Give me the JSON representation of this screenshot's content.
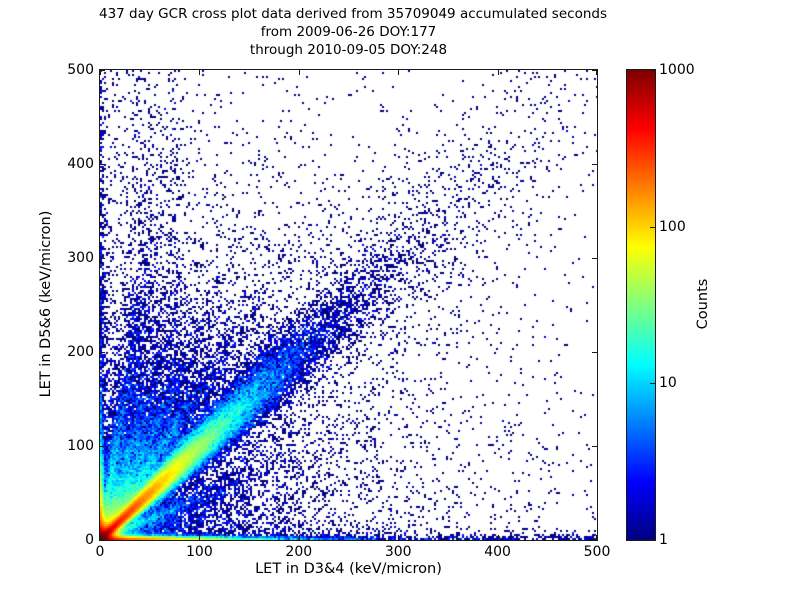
{
  "colors": {
    "foreground": "#000000",
    "background": "#ffffff"
  },
  "chart_data": {
    "type": "heatmap",
    "title_lines": [
      "437 day GCR cross plot data derived from 35709049 accumulated seconds",
      "from 2009-06-26 DOY:177",
      "through 2010-09-05 DOY:248"
    ],
    "xlabel": "LET in D3&4 (keV/micron)",
    "ylabel": "LET in D5&6 (keV/micron)",
    "xlim": [
      0,
      500
    ],
    "ylim": [
      0,
      500
    ],
    "xticks": [
      0,
      100,
      200,
      300,
      400,
      500
    ],
    "yticks": [
      0,
      100,
      200,
      300,
      400,
      500
    ],
    "grid": false,
    "bin_size_px": 2,
    "seed": 177248,
    "colorbar": {
      "label": "Counts",
      "scale": "log",
      "min": 1,
      "max": 1000,
      "ticks": [
        1,
        10,
        100,
        1000
      ],
      "colormap": "jet",
      "colormap_stops": [
        "#000080",
        "#0000ff",
        "#00ffff",
        "#80ff80",
        "#ffff00",
        "#ff8000",
        "#ff0000",
        "#800000"
      ]
    },
    "features": {
      "origin_core": {
        "amp": 1500,
        "r0": 7,
        "power": 1.3
      },
      "corner_fill": [
        [
          25,
          16
        ],
        [
          4,
          45
        ]
      ],
      "diagonal": {
        "amp": 600,
        "s_decay": 36,
        "sigma0": 1.6,
        "sigma_slope": 0.065
      },
      "diagonal_halo": {
        "amp": 2.2,
        "s_decay": 120,
        "sigma0": 5,
        "sigma_slope": 0.08
      },
      "rays": [
        {
          "m": 1.6,
          "amp": 55,
          "r_decay": 55
        },
        {
          "m": 2.2,
          "amp": 45,
          "r_decay": 52
        },
        {
          "m": 3.2,
          "amp": 40,
          "r_decay": 48
        },
        {
          "m": 6.0,
          "amp": 40,
          "r_decay": 55
        },
        {
          "m": 0.45,
          "amp": 20,
          "r_decay": 45
        }
      ],
      "ray_sigma0": 1.2,
      "ray_sigma_slope": 0.03,
      "vlines": [
        {
          "x": 36,
          "amp": 2.2
        },
        {
          "x": 54,
          "amp": 1.8
        },
        {
          "x": 74,
          "amp": 1.5
        }
      ],
      "vline_y_decay": 150,
      "vline_sigma0": 2.2,
      "vline_sigma_slope": 0.012,
      "bottom_band": {
        "hot_amp": 400,
        "hot_decay": 50,
        "hot_sigma": 2.0,
        "base_amp": 3.0,
        "base_decay": 130,
        "base_const": 0.8,
        "base_sigma": 3.2,
        "halo_amp": 0.5,
        "halo_decay": 300,
        "halo_sigma": 8
      },
      "left_band": {
        "hot_amp": 300,
        "hot_decay": 30,
        "hot_sigma": 2.0,
        "base_amp": 2.2,
        "base_decay": 160,
        "base_const": 0.55,
        "base_sigma": 2.6,
        "halo_amp": 0.4,
        "halo_decay": 300,
        "halo_sigma": 7
      },
      "diffuse": {
        "radial": [
          [
            1.6,
            70,
            0
          ],
          [
            0.5,
            150,
            150
          ],
          [
            0.1,
            260,
            160
          ]
        ],
        "axial": [
          [
            0.25,
            90,
            400
          ],
          [
            0.15,
            400,
            90
          ]
        ],
        "uniform": 0.0015
      }
    }
  }
}
